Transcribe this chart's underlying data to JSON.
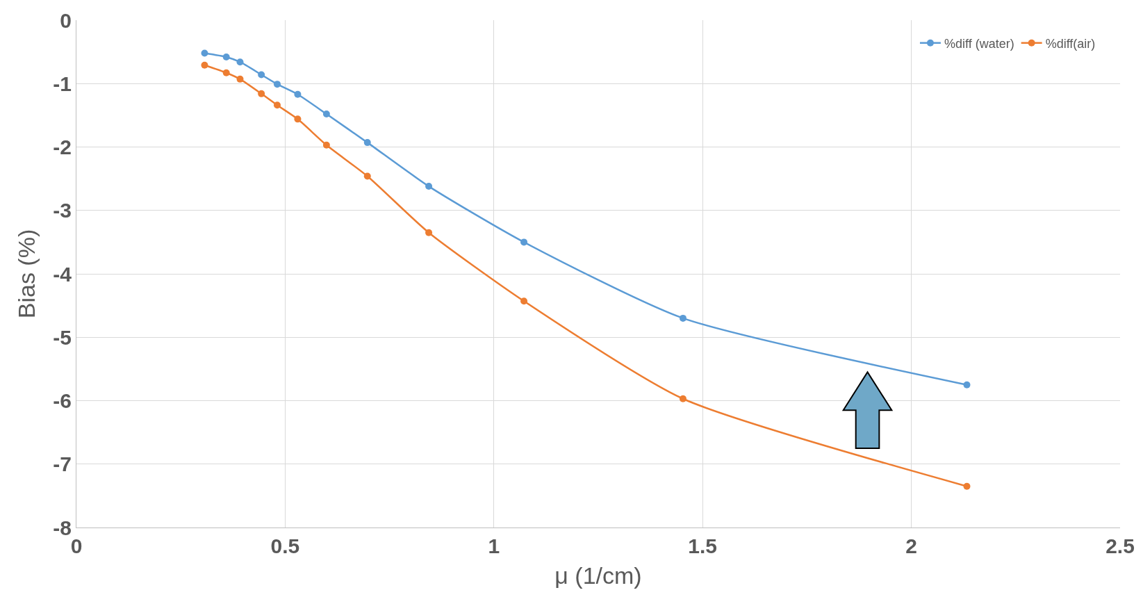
{
  "chart_data": {
    "type": "line",
    "xlabel": "μ (1/cm)",
    "ylabel": "Bias (%)",
    "x": [
      0.307,
      0.359,
      0.392,
      0.443,
      0.481,
      0.53,
      0.599,
      0.697,
      0.844,
      1.072,
      1.453,
      2.133
    ],
    "series": [
      {
        "name": "%diff (water)",
        "color": "#5b9bd5",
        "values": [
          -0.52,
          -0.58,
          -0.66,
          -0.86,
          -1.01,
          -1.17,
          -1.48,
          -1.93,
          -2.62,
          -3.5,
          -4.7,
          -5.75
        ]
      },
      {
        "name": "%diff(air)",
        "color": "#ed7d31",
        "values": [
          -0.71,
          -0.83,
          -0.93,
          -1.16,
          -1.34,
          -1.56,
          -1.97,
          -2.46,
          -3.35,
          -4.43,
          -5.97,
          -7.35
        ]
      }
    ],
    "xlim": [
      0,
      2.5
    ],
    "xticks": [
      0,
      0.5,
      1,
      1.5,
      2,
      2.5
    ],
    "ylim": [
      -8,
      0
    ],
    "yticks": [
      -8,
      -7,
      -6,
      -5,
      -4,
      -3,
      -2,
      -1,
      0
    ],
    "grid": true,
    "legend": "top right",
    "marker": "circle",
    "line_style": "solid"
  }
}
